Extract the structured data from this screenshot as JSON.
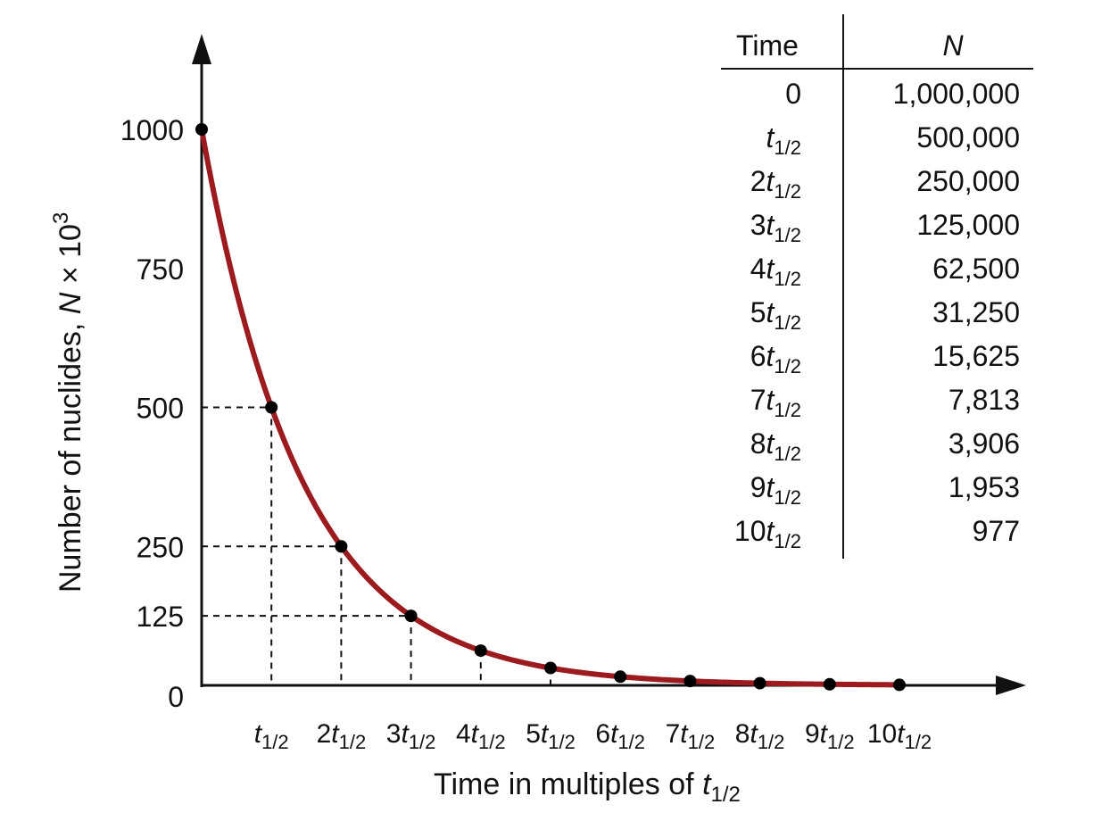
{
  "chart_data": {
    "type": "line",
    "xlabel": {
      "prefix": "Time in multiples of ",
      "var": "t",
      "sub": "1/2"
    },
    "ylabel": {
      "prefix": "Number of nuclides, ",
      "var": "N",
      "mid": " × 10",
      "sup": "3"
    },
    "x_unit": {
      "var": "t",
      "sub": "1/2"
    },
    "xlim": [
      0,
      11.3
    ],
    "ylim": [
      0,
      1000
    ],
    "y_ticks": [
      0,
      125,
      250,
      500,
      750,
      1000
    ],
    "x_ticks": [
      1,
      2,
      3,
      4,
      5,
      6,
      7,
      8,
      9,
      10
    ],
    "x_tick_labels": [
      {
        "coef": "",
        "var": "t",
        "sub": "1/2"
      },
      {
        "coef": "2",
        "var": "t",
        "sub": "1/2"
      },
      {
        "coef": "3",
        "var": "t",
        "sub": "1/2"
      },
      {
        "coef": "4",
        "var": "t",
        "sub": "1/2"
      },
      {
        "coef": "5",
        "var": "t",
        "sub": "1/2"
      },
      {
        "coef": "6",
        "var": "t",
        "sub": "1/2"
      },
      {
        "coef": "7",
        "var": "t",
        "sub": "1/2"
      },
      {
        "coef": "8",
        "var": "t",
        "sub": "1/2"
      },
      {
        "coef": "9",
        "var": "t",
        "sub": "1/2"
      },
      {
        "coef": "10",
        "var": "t",
        "sub": "1/2"
      }
    ],
    "series": [
      {
        "x": [
          0,
          1,
          2,
          3,
          4,
          5,
          6,
          7,
          8,
          9,
          10
        ],
        "y": [
          1000,
          500,
          250,
          125,
          62.5,
          31.25,
          15.625,
          7.813,
          3.906,
          1.953,
          0.977
        ],
        "color": "#9b1b1f",
        "marker_color": "#000000"
      }
    ],
    "guide_lines": [
      {
        "x": 1,
        "y": 500
      },
      {
        "x": 2,
        "y": 250
      },
      {
        "x": 3,
        "y": 125
      },
      {
        "x": 4,
        "y": 62.5
      },
      {
        "x": 5,
        "y": 31.25
      }
    ],
    "grid": false,
    "table": {
      "headers": [
        {
          "text": "Time",
          "italic": false
        },
        {
          "text": "N",
          "italic": true
        }
      ],
      "rows": [
        {
          "time": {
            "coef": "0",
            "var": "",
            "sub": ""
          },
          "n": "1,000,000"
        },
        {
          "time": {
            "coef": "",
            "var": "t",
            "sub": "1/2"
          },
          "n": "500,000"
        },
        {
          "time": {
            "coef": "2",
            "var": "t",
            "sub": "1/2"
          },
          "n": "250,000"
        },
        {
          "time": {
            "coef": "3",
            "var": "t",
            "sub": "1/2"
          },
          "n": "125,000"
        },
        {
          "time": {
            "coef": "4",
            "var": "t",
            "sub": "1/2"
          },
          "n": "62,500"
        },
        {
          "time": {
            "coef": "5",
            "var": "t",
            "sub": "1/2"
          },
          "n": "31,250"
        },
        {
          "time": {
            "coef": "6",
            "var": "t",
            "sub": "1/2"
          },
          "n": "15,625"
        },
        {
          "time": {
            "coef": "7",
            "var": "t",
            "sub": "1/2"
          },
          "n": "7,813"
        },
        {
          "time": {
            "coef": "8",
            "var": "t",
            "sub": "1/2"
          },
          "n": "3,906"
        },
        {
          "time": {
            "coef": "9",
            "var": "t",
            "sub": "1/2"
          },
          "n": "1,953"
        },
        {
          "time": {
            "coef": "10",
            "var": "t",
            "sub": "1/2"
          },
          "n": "977"
        }
      ]
    }
  }
}
